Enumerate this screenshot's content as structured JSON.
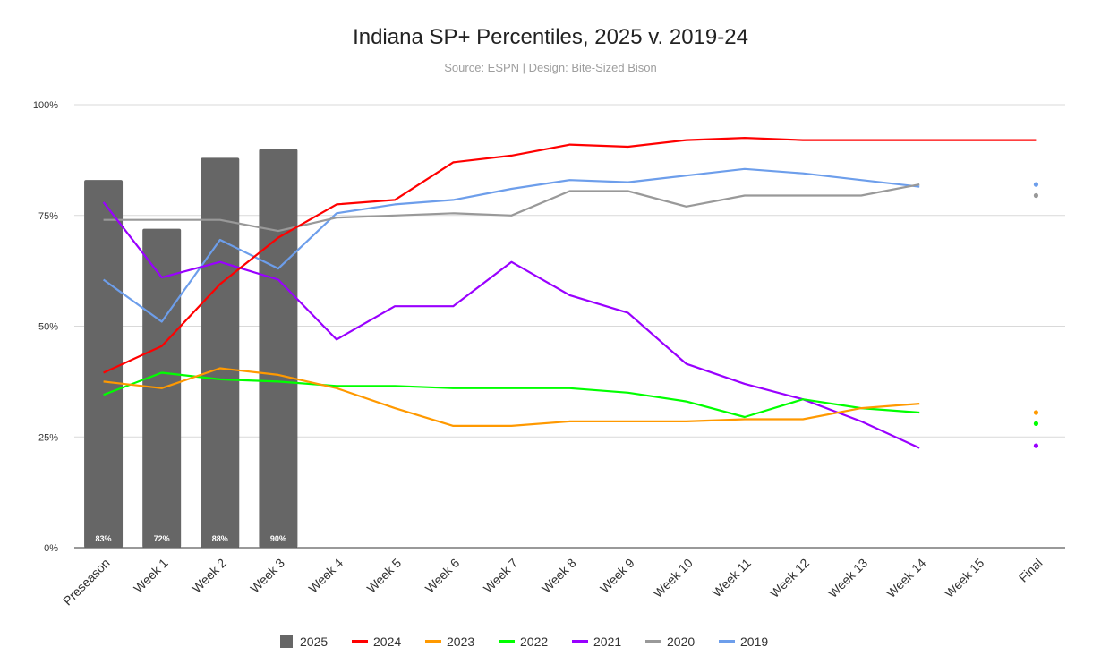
{
  "chart_data": {
    "type": "bar+line",
    "title": "Indiana SP+ Percentiles, 2025 v. 2019-24",
    "subtitle": "Source: ESPN | Design: Bite-Sized Bison",
    "xlabel": "",
    "ylabel": "",
    "ylim": [
      0,
      100
    ],
    "yticks": [
      0,
      25,
      50,
      75,
      100
    ],
    "ytick_labels": [
      "0%",
      "25%",
      "50%",
      "75%",
      "100%"
    ],
    "grid": true,
    "legend_position": "bottom",
    "categories": [
      "Preseason",
      "Week 1",
      "Week 2",
      "Week 3",
      "Week 4",
      "Week 5",
      "Week 6",
      "Week 7",
      "Week 8",
      "Week 9",
      "Week 10",
      "Week 11",
      "Week 12",
      "Week 13",
      "Week 14",
      "Week 15",
      "Final"
    ],
    "bar_series": {
      "name": "2025",
      "color": "#666666",
      "values": [
        83,
        72,
        88,
        90
      ],
      "labels": [
        "83%",
        "72%",
        "88%",
        "90%"
      ]
    },
    "line_series": [
      {
        "name": "2024",
        "color": "#ff0000",
        "values": [
          39.5,
          45.5,
          59.5,
          70,
          77.5,
          78.5,
          87,
          88.5,
          91,
          90.5,
          92,
          92.5,
          92,
          92,
          92,
          92,
          92
        ]
      },
      {
        "name": "2023",
        "color": "#ff9900",
        "values": [
          37.5,
          36,
          40.5,
          39,
          36,
          31.5,
          27.5,
          27.5,
          28.5,
          28.5,
          28.5,
          29,
          29,
          31.5,
          32.5,
          null,
          30.5
        ]
      },
      {
        "name": "2022",
        "color": "#00ff00",
        "values": [
          34.5,
          39.5,
          38,
          37.5,
          36.5,
          36.5,
          36,
          36,
          36,
          35,
          33,
          29.5,
          33.5,
          31.5,
          30.5,
          null,
          28
        ]
      },
      {
        "name": "2021",
        "color": "#9900ff",
        "values": [
          78,
          61,
          64.5,
          60.5,
          47,
          54.5,
          54.5,
          64.5,
          57,
          53,
          41.5,
          37,
          33.5,
          28.5,
          22.5,
          null,
          23
        ]
      },
      {
        "name": "2020",
        "color": "#999999",
        "values": [
          74,
          74,
          74,
          71.5,
          74.5,
          75,
          75.5,
          75,
          80.5,
          80.5,
          77,
          79.5,
          79.5,
          79.5,
          82,
          null,
          79.5
        ]
      },
      {
        "name": "2019",
        "color": "#6d9eeb",
        "values": [
          60.5,
          51,
          69.5,
          63,
          75.5,
          77.5,
          78.5,
          81,
          83,
          82.5,
          84,
          85.5,
          84.5,
          83,
          81.5,
          null,
          82
        ]
      }
    ],
    "legend": [
      {
        "name": "2025",
        "color": "#666666",
        "shape": "square"
      },
      {
        "name": "2024",
        "color": "#ff0000",
        "shape": "line"
      },
      {
        "name": "2023",
        "color": "#ff9900",
        "shape": "line"
      },
      {
        "name": "2022",
        "color": "#00ff00",
        "shape": "line"
      },
      {
        "name": "2021",
        "color": "#9900ff",
        "shape": "line"
      },
      {
        "name": "2020",
        "color": "#999999",
        "shape": "line"
      },
      {
        "name": "2019",
        "color": "#6d9eeb",
        "shape": "line"
      }
    ]
  }
}
